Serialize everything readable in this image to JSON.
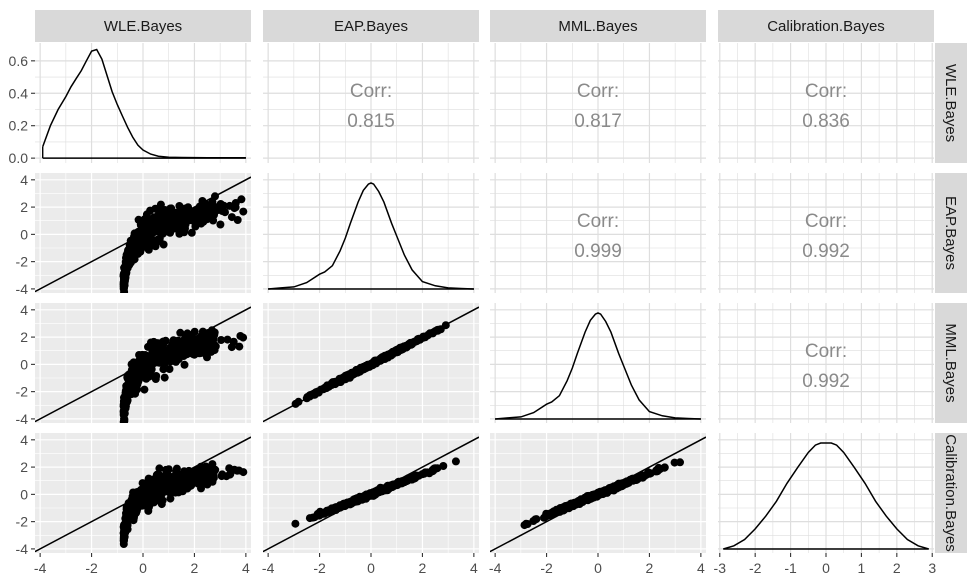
{
  "chart_data": {
    "type": "scatter-matrix",
    "variables": [
      "WLE.Bayes",
      "EAP.Bayes",
      "MML.Bayes",
      "Calibration.Bayes"
    ],
    "correlation_label": "Corr:",
    "correlations": [
      {
        "row": 0,
        "col": 1,
        "value": "0.815"
      },
      {
        "row": 0,
        "col": 2,
        "value": "0.817"
      },
      {
        "row": 0,
        "col": 3,
        "value": "0.836"
      },
      {
        "row": 1,
        "col": 2,
        "value": "0.999"
      },
      {
        "row": 1,
        "col": 3,
        "value": "0.992"
      },
      {
        "row": 2,
        "col": 3,
        "value": "0.992"
      }
    ],
    "x_axes": [
      {
        "range": [
          -4.2,
          4.2
        ],
        "ticks": [
          -4,
          -2,
          0,
          2,
          4
        ]
      },
      {
        "range": [
          -4.2,
          4.2
        ],
        "ticks": [
          -4,
          -2,
          0,
          2,
          4
        ]
      },
      {
        "range": [
          -4.2,
          4.2
        ],
        "ticks": [
          -4,
          -2,
          0,
          2,
          4
        ]
      },
      {
        "range": [
          -3.05,
          3.05
        ],
        "ticks": [
          -3,
          -2,
          -1,
          0,
          1,
          2,
          3
        ]
      }
    ],
    "y_axes": [
      {
        "range": [
          -0.03,
          0.71
        ],
        "ticks": [
          0.0,
          0.2,
          0.4,
          0.6
        ],
        "tick_labels": [
          "0.0",
          "0.2",
          "0.4",
          "0.6"
        ]
      },
      {
        "range": [
          -4.3,
          4.5
        ],
        "ticks": [
          -4,
          -2,
          0,
          2,
          4
        ],
        "tick_labels": [
          "-4",
          "-2",
          "0",
          "2",
          "4"
        ]
      },
      {
        "range": [
          -4.3,
          4.5
        ],
        "ticks": [
          -4,
          -2,
          0,
          2,
          4
        ],
        "tick_labels": [
          "-4",
          "-2",
          "0",
          "2",
          "4"
        ]
      },
      {
        "range": [
          -4.3,
          4.5
        ],
        "ticks": [
          -4,
          -2,
          0,
          2,
          4
        ],
        "tick_labels": [
          "-4",
          "-2",
          "0",
          "2",
          "4"
        ]
      }
    ],
    "reference_line": {
      "slope": 1,
      "intercept": 0
    },
    "density_curves": [
      {
        "var": "WLE.Bayes",
        "x": [
          -3.9,
          -3.6,
          -3.3,
          -3.0,
          -2.8,
          -2.6,
          -2.4,
          -2.2,
          -2.0,
          -1.8,
          -1.6,
          -1.4,
          -1.2,
          -1.0,
          -0.8,
          -0.6,
          -0.4,
          -0.2,
          0.0,
          0.3,
          0.6,
          1.0,
          1.5,
          2.0,
          2.5,
          3.0,
          3.5,
          4.0
        ],
        "y": [
          0.07,
          0.2,
          0.3,
          0.38,
          0.44,
          0.49,
          0.54,
          0.6,
          0.66,
          0.67,
          0.61,
          0.51,
          0.41,
          0.33,
          0.26,
          0.19,
          0.13,
          0.08,
          0.05,
          0.025,
          0.012,
          0.006,
          0.004,
          0.003,
          0.002,
          0.002,
          0.002,
          0.002
        ]
      },
      {
        "var": "EAP.Bayes",
        "x": [
          -4.0,
          -3.5,
          -3.0,
          -2.5,
          -2.0,
          -1.8,
          -1.5,
          -1.2,
          -1.0,
          -0.8,
          -0.5,
          -0.3,
          -0.1,
          0.0,
          0.1,
          0.3,
          0.5,
          0.8,
          1.0,
          1.3,
          1.6,
          2.0,
          2.5,
          3.0,
          3.5,
          4.0
        ],
        "y": [
          0.0,
          0.01,
          0.02,
          0.06,
          0.14,
          0.16,
          0.22,
          0.36,
          0.48,
          0.62,
          0.82,
          0.93,
          0.99,
          1.0,
          0.99,
          0.92,
          0.82,
          0.62,
          0.5,
          0.32,
          0.18,
          0.07,
          0.03,
          0.01,
          0.005,
          0.0
        ]
      },
      {
        "var": "MML.Bayes",
        "x": [
          -4.0,
          -3.5,
          -3.0,
          -2.5,
          -2.0,
          -1.8,
          -1.5,
          -1.2,
          -1.0,
          -0.8,
          -0.5,
          -0.3,
          -0.1,
          0.0,
          0.1,
          0.3,
          0.5,
          0.8,
          1.0,
          1.3,
          1.6,
          2.0,
          2.5,
          3.0,
          3.5,
          4.0
        ],
        "y": [
          0.0,
          0.01,
          0.02,
          0.06,
          0.14,
          0.16,
          0.22,
          0.36,
          0.48,
          0.62,
          0.82,
          0.93,
          0.99,
          1.0,
          0.99,
          0.92,
          0.82,
          0.62,
          0.5,
          0.32,
          0.18,
          0.07,
          0.03,
          0.01,
          0.005,
          0.0
        ]
      },
      {
        "var": "Calibration.Bayes",
        "x": [
          -2.9,
          -2.6,
          -2.3,
          -2.0,
          -1.7,
          -1.4,
          -1.1,
          -0.8,
          -0.5,
          -0.3,
          -0.15,
          0.0,
          0.15,
          0.3,
          0.5,
          0.8,
          1.1,
          1.4,
          1.7,
          2.0,
          2.3,
          2.6,
          2.9
        ],
        "y": [
          0.0,
          0.03,
          0.09,
          0.19,
          0.31,
          0.45,
          0.62,
          0.77,
          0.91,
          0.98,
          1.0,
          1.0,
          1.0,
          0.98,
          0.91,
          0.77,
          0.62,
          0.45,
          0.31,
          0.19,
          0.09,
          0.03,
          0.0
        ]
      }
    ],
    "scatter_rules": [
      {
        "row": 1,
        "col": 0,
        "x_min": -0.75,
        "x_max": 4.0,
        "curve": "y = 1.25*log((x+0.8)/0.9)",
        "spread": 0.35,
        "n": 520
      },
      {
        "row": 2,
        "col": 0,
        "x_min": -0.75,
        "x_max": 4.0,
        "curve": "y = 1.25*log((x+0.8)/0.9)",
        "spread": 0.35,
        "n": 520
      },
      {
        "row": 3,
        "col": 0,
        "x_min": -0.75,
        "x_max": 4.0,
        "curve": "y = 1.1*log((x+0.8)/0.9)",
        "spread": 0.3,
        "n": 520
      },
      {
        "row": 2,
        "col": 1,
        "x_min": -3.6,
        "x_max": 3.7,
        "curve": "y = 0.97*x",
        "spread": 0.05,
        "n": 520
      },
      {
        "row": 3,
        "col": 1,
        "x_min": -3.6,
        "x_max": 3.7,
        "curve": "y = 0.75*x",
        "spread": 0.06,
        "n": 520
      },
      {
        "row": 3,
        "col": 2,
        "x_min": -3.6,
        "x_max": 3.6,
        "curve": "y = 0.77*x",
        "spread": 0.06,
        "n": 520
      }
    ]
  }
}
